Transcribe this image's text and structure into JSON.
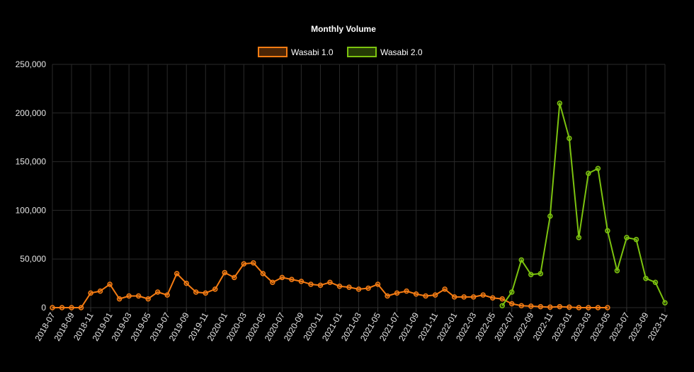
{
  "chart_data": {
    "type": "line",
    "title": "Monthly Volume",
    "x": [
      "2018-07",
      "2018-08",
      "2018-09",
      "2018-10",
      "2018-11",
      "2018-12",
      "2019-01",
      "2019-02",
      "2019-03",
      "2019-04",
      "2019-05",
      "2019-06",
      "2019-07",
      "2019-08",
      "2019-09",
      "2019-10",
      "2019-11",
      "2019-12",
      "2020-01",
      "2020-02",
      "2020-03",
      "2020-04",
      "2020-05",
      "2020-06",
      "2020-07",
      "2020-08",
      "2020-09",
      "2020-10",
      "2020-11",
      "2020-12",
      "2021-01",
      "2021-02",
      "2021-03",
      "2021-04",
      "2021-05",
      "2021-06",
      "2021-07",
      "2021-08",
      "2021-09",
      "2021-10",
      "2021-11",
      "2021-12",
      "2022-01",
      "2022-02",
      "2022-03",
      "2022-04",
      "2022-05",
      "2022-06",
      "2022-07",
      "2022-08",
      "2022-09",
      "2022-10",
      "2022-11",
      "2022-12",
      "2023-01",
      "2023-02",
      "2023-03",
      "2023-04",
      "2023-05",
      "2023-06",
      "2023-07",
      "2023-08",
      "2023-09",
      "2023-10",
      "2023-11"
    ],
    "x_tick_labels": [
      "2018-07",
      "2018-09",
      "2018-11",
      "2019-01",
      "2019-03",
      "2019-05",
      "2019-07",
      "2019-09",
      "2019-11",
      "2020-01",
      "2020-03",
      "2020-05",
      "2020-07",
      "2020-09",
      "2020-11",
      "2021-01",
      "2021-03",
      "2021-05",
      "2021-07",
      "2021-09",
      "2021-11",
      "2022-01",
      "2022-03",
      "2022-05",
      "2022-07",
      "2022-09",
      "2022-11",
      "2023-01",
      "2023-03",
      "2023-05",
      "2023-07",
      "2023-09",
      "2023-11"
    ],
    "series": [
      {
        "name": "Wasabi 1.0",
        "color": "#f57c13",
        "values": [
          0,
          0,
          0,
          0,
          15000,
          17000,
          24000,
          9000,
          12000,
          12000,
          9000,
          16000,
          13000,
          35000,
          25000,
          16000,
          15000,
          19000,
          36000,
          31000,
          45000,
          46000,
          35000,
          26000,
          31000,
          29000,
          27000,
          24000,
          23000,
          26000,
          22000,
          21000,
          19000,
          20000,
          24000,
          12000,
          15000,
          17000,
          14000,
          12000,
          13000,
          19000,
          11000,
          11000,
          11000,
          13000,
          10000,
          9000,
          4000,
          2000,
          1500,
          1000,
          500,
          1000,
          500,
          0,
          0,
          0,
          0,
          null,
          null,
          null,
          null,
          null,
          null
        ]
      },
      {
        "name": "Wasabi 2.0",
        "color": "#7cc30f",
        "values": [
          null,
          null,
          null,
          null,
          null,
          null,
          null,
          null,
          null,
          null,
          null,
          null,
          null,
          null,
          null,
          null,
          null,
          null,
          null,
          null,
          null,
          null,
          null,
          null,
          null,
          null,
          null,
          null,
          null,
          null,
          null,
          null,
          null,
          null,
          null,
          null,
          null,
          null,
          null,
          null,
          null,
          null,
          null,
          null,
          null,
          null,
          null,
          2000,
          16000,
          49000,
          34000,
          35000,
          94000,
          210000,
          174000,
          72000,
          138000,
          143000,
          79000,
          38000,
          72000,
          70000,
          30000,
          26000,
          5000
        ]
      }
    ],
    "ylim": [
      0,
      250000
    ],
    "y_ticks": [
      0,
      50000,
      100000,
      150000,
      200000,
      250000
    ],
    "y_tick_labels": [
      "0",
      "50,000",
      "100,000",
      "150,000",
      "200,000",
      "250,000"
    ],
    "grid": true,
    "legend_position": "top-center"
  }
}
